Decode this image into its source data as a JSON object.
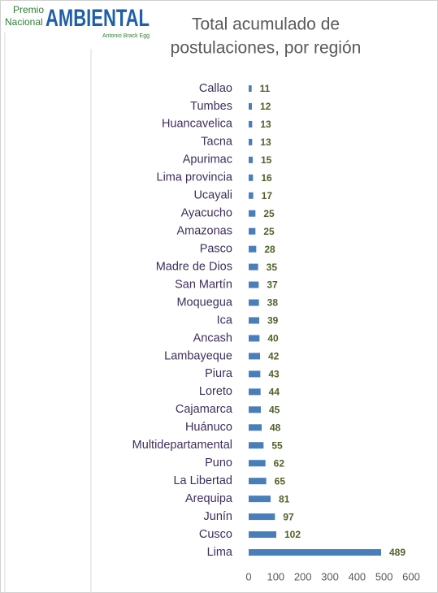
{
  "chart_data": {
    "type": "hbar",
    "logo": {
      "top": "Premio",
      "middle": "Nacional",
      "main": "AMBIENTAL",
      "sub": "Antonio Brack Egg"
    },
    "title": [
      "Total acumulado de",
      "postulaciones, por región"
    ],
    "categories": [
      "Callao",
      "Tumbes",
      "Huancavelica",
      "Tacna",
      "Apurimac",
      "Lima provincia",
      "Ucayali",
      "Ayacucho",
      "Amazonas",
      "Pasco",
      "Madre de Dios",
      "San Martín",
      "Moquegua",
      "Ica",
      "Ancash",
      "Lambayeque",
      "Piura",
      "Loreto",
      "Cajamarca",
      "Huánuco",
      "Multidepartamental",
      "Puno",
      "La Libertad",
      "Arequipa",
      "Junín",
      "Cusco",
      "Lima"
    ],
    "values": [
      11,
      12,
      13,
      13,
      15,
      16,
      17,
      25,
      25,
      28,
      35,
      37,
      38,
      39,
      40,
      42,
      43,
      44,
      45,
      48,
      55,
      62,
      65,
      81,
      97,
      102,
      489
    ],
    "color": "#4a7ebb",
    "xlim": [
      0,
      600
    ],
    "xticks": [
      0,
      100,
      200,
      300,
      400,
      500,
      600
    ]
  }
}
